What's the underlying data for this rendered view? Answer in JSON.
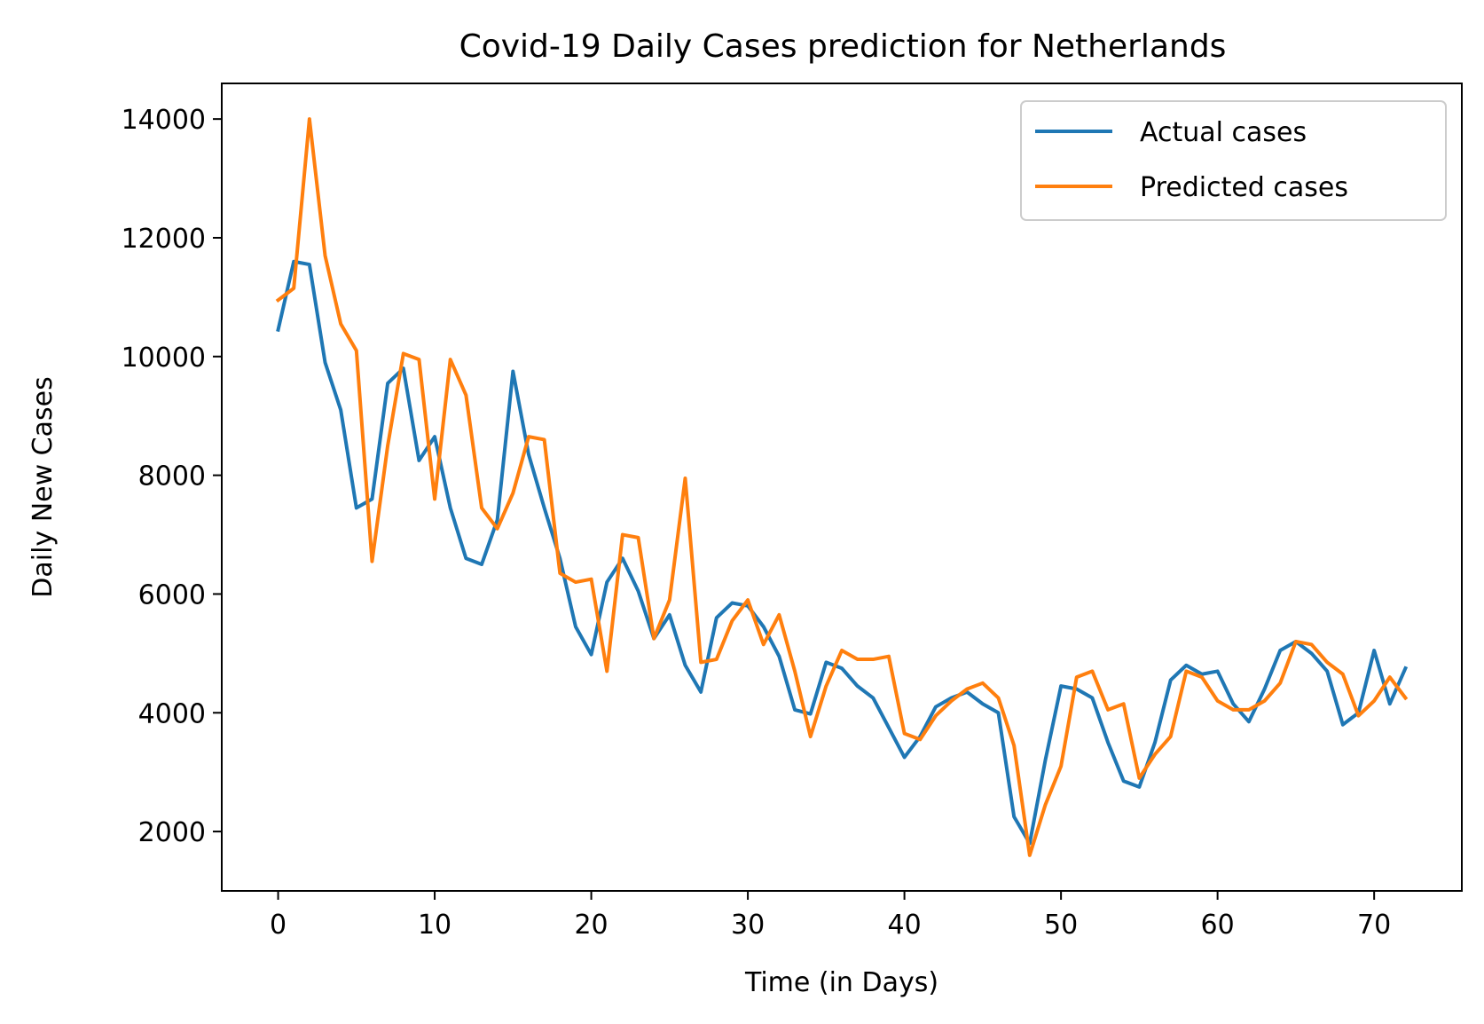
{
  "chart_data": {
    "type": "line",
    "title": "Covid-19 Daily Cases prediction for Netherlands",
    "xlabel": "Time (in Days)",
    "ylabel": "Daily New Cases",
    "xlim": [
      -3.6,
      75.6
    ],
    "ylim": [
      1000,
      14600
    ],
    "xticks": [
      0,
      10,
      20,
      30,
      40,
      50,
      60,
      70
    ],
    "yticks": [
      2000,
      4000,
      6000,
      8000,
      10000,
      12000,
      14000
    ],
    "grid": false,
    "legend_position": "top-right",
    "series": [
      {
        "name": "Actual cases",
        "color": "#1f77b4",
        "x": [
          0,
          1,
          2,
          3,
          4,
          5,
          6,
          7,
          8,
          9,
          10,
          11,
          12,
          13,
          14,
          15,
          16,
          17,
          18,
          19,
          20,
          21,
          22,
          23,
          24,
          25,
          26,
          27,
          28,
          29,
          30,
          31,
          32,
          33,
          34,
          35,
          36,
          37,
          38,
          39,
          40,
          41,
          42,
          43,
          44,
          45,
          46,
          47,
          48,
          49,
          50,
          51,
          52,
          53,
          54,
          55,
          56,
          57,
          58,
          59,
          60,
          61,
          62,
          63,
          64,
          65,
          66,
          67,
          68,
          69,
          70,
          71,
          72
        ],
        "values": [
          10450,
          11600,
          11550,
          9900,
          9100,
          7450,
          7600,
          9550,
          9800,
          8250,
          8650,
          7450,
          6600,
          6500,
          7250,
          9750,
          8350,
          7450,
          6600,
          5450,
          4980,
          6200,
          6600,
          6050,
          5250,
          5650,
          4800,
          4350,
          5600,
          5850,
          5800,
          5450,
          4950,
          4050,
          3980,
          4850,
          4750,
          4450,
          4250,
          3750,
          3250,
          3600,
          4100,
          4250,
          4350,
          4150,
          4000,
          2250,
          1800,
          3200,
          4450,
          4400,
          4250,
          3500,
          2850,
          2750,
          3500,
          4550,
          4800,
          4650,
          4700,
          4150,
          3850,
          4400,
          5050,
          5200,
          5000,
          4700,
          3800,
          4000,
          5050,
          4150,
          4750
        ]
      },
      {
        "name": "Predicted cases",
        "color": "#ff7f0e",
        "x": [
          0,
          1,
          2,
          3,
          4,
          5,
          6,
          7,
          8,
          9,
          10,
          11,
          12,
          13,
          14,
          15,
          16,
          17,
          18,
          19,
          20,
          21,
          22,
          23,
          24,
          25,
          26,
          27,
          28,
          29,
          30,
          31,
          32,
          33,
          34,
          35,
          36,
          37,
          38,
          39,
          40,
          41,
          42,
          43,
          44,
          45,
          46,
          47,
          48,
          49,
          50,
          51,
          52,
          53,
          54,
          55,
          56,
          57,
          58,
          59,
          60,
          61,
          62,
          63,
          64,
          65,
          66,
          67,
          68,
          69,
          70,
          71,
          72
        ],
        "values": [
          10950,
          11150,
          14000,
          11700,
          10550,
          10100,
          6550,
          8500,
          10050,
          9950,
          7600,
          9950,
          9350,
          7450,
          7100,
          7700,
          8650,
          8600,
          6350,
          6200,
          6250,
          4700,
          7000,
          6950,
          5250,
          5900,
          7950,
          4850,
          4900,
          5550,
          5900,
          5150,
          5650,
          4700,
          3600,
          4450,
          5050,
          4900,
          4900,
          4950,
          3650,
          3550,
          3950,
          4200,
          4400,
          4500,
          4250,
          3450,
          1600,
          2450,
          3100,
          4600,
          4700,
          4050,
          4150,
          2900,
          3300,
          3600,
          4700,
          4600,
          4200,
          4050,
          4050,
          4200,
          4500,
          5200,
          5150,
          4850,
          4650,
          3950,
          4200,
          4600,
          4250
        ]
      }
    ]
  }
}
